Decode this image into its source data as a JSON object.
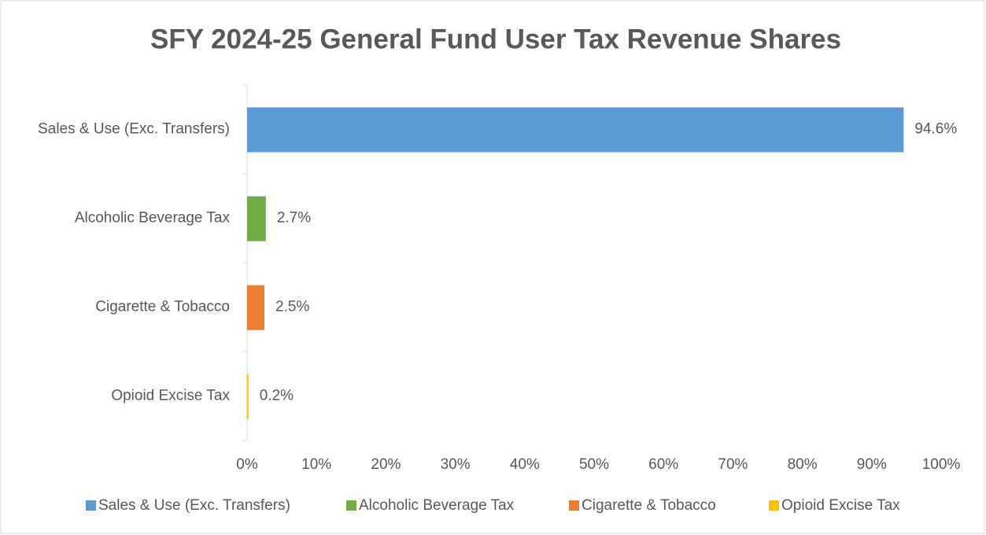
{
  "chart_data": {
    "type": "hbar",
    "title": "SFY 2024-25 General Fund User Tax Revenue Shares",
    "categories": [
      "Sales & Use (Exc. Transfers)",
      "Alcoholic Beverage Tax",
      "Cigarette & Tobacco",
      "Opioid Excise Tax"
    ],
    "values": [
      94.6,
      2.7,
      2.5,
      0.2
    ],
    "value_labels": [
      "94.6%",
      "2.7%",
      "2.5%",
      "0.2%"
    ],
    "colors": [
      "#5b9bd5",
      "#70ad47",
      "#ed7d31",
      "#ffc000"
    ],
    "xlim": [
      0,
      100
    ],
    "xticks": [
      {
        "value": 0,
        "label": "0%"
      },
      {
        "value": 10,
        "label": "10%"
      },
      {
        "value": 20,
        "label": "20%"
      },
      {
        "value": 30,
        "label": "30%"
      },
      {
        "value": 40,
        "label": "40%"
      },
      {
        "value": 50,
        "label": "50%"
      },
      {
        "value": 60,
        "label": "60%"
      },
      {
        "value": 70,
        "label": "70%"
      },
      {
        "value": 80,
        "label": "80%"
      },
      {
        "value": 90,
        "label": "90%"
      },
      {
        "value": 100,
        "label": "100%"
      }
    ],
    "legend": "bottom"
  }
}
